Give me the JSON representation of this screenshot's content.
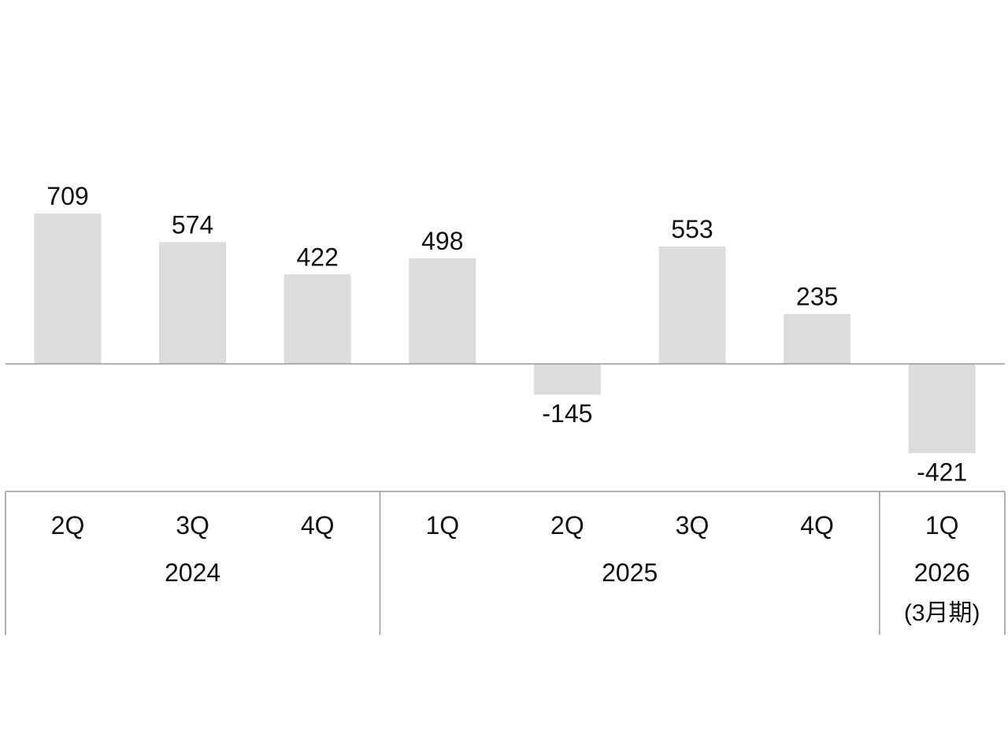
{
  "chart_data": {
    "type": "bar",
    "categories": [
      "2Q",
      "3Q",
      "4Q",
      "1Q",
      "2Q",
      "3Q",
      "4Q",
      "1Q"
    ],
    "values": [
      709,
      574,
      422,
      498,
      -145,
      553,
      235,
      -421
    ],
    "data_labels": [
      "709",
      "574",
      "422",
      "498",
      "-145",
      "553",
      "235",
      "-421"
    ],
    "groups": [
      {
        "label": "2024",
        "sublabel": "",
        "count": 3
      },
      {
        "label": "2025",
        "sublabel": "",
        "count": 4
      },
      {
        "label": "2026",
        "sublabel": "(3月期)",
        "count": 1
      }
    ],
    "title": "",
    "xlabel": "",
    "ylabel": "",
    "grid": false,
    "bar_color": "#dcdcdc",
    "axis_color": "#999999",
    "text_color": "#111111"
  }
}
